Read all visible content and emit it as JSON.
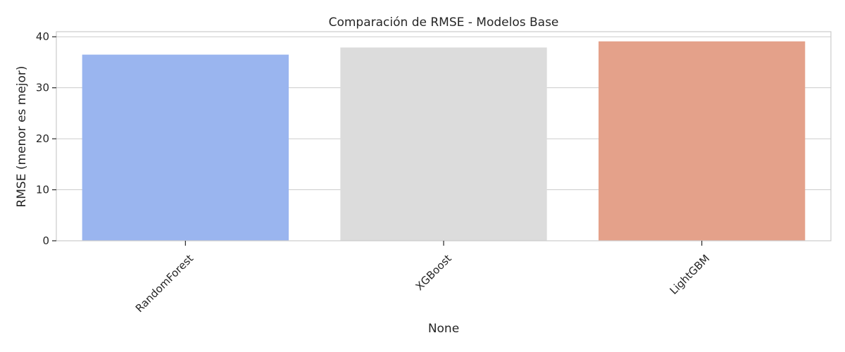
{
  "chart_data": {
    "type": "bar",
    "title": "Comparación de RMSE - Modelos Base",
    "xlabel": "None",
    "ylabel": "RMSE (menor es mejor)",
    "categories": [
      "RandomForest",
      "XGBoost",
      "LightGBM"
    ],
    "values": [
      36.5,
      37.9,
      39.1
    ],
    "colors": [
      "#9ab5ef",
      "#dcdcdc",
      "#e4a18a"
    ],
    "ylim": [
      0,
      41
    ],
    "yticks": [
      0,
      10,
      20,
      30,
      40
    ],
    "grid": true,
    "legend": "none"
  }
}
